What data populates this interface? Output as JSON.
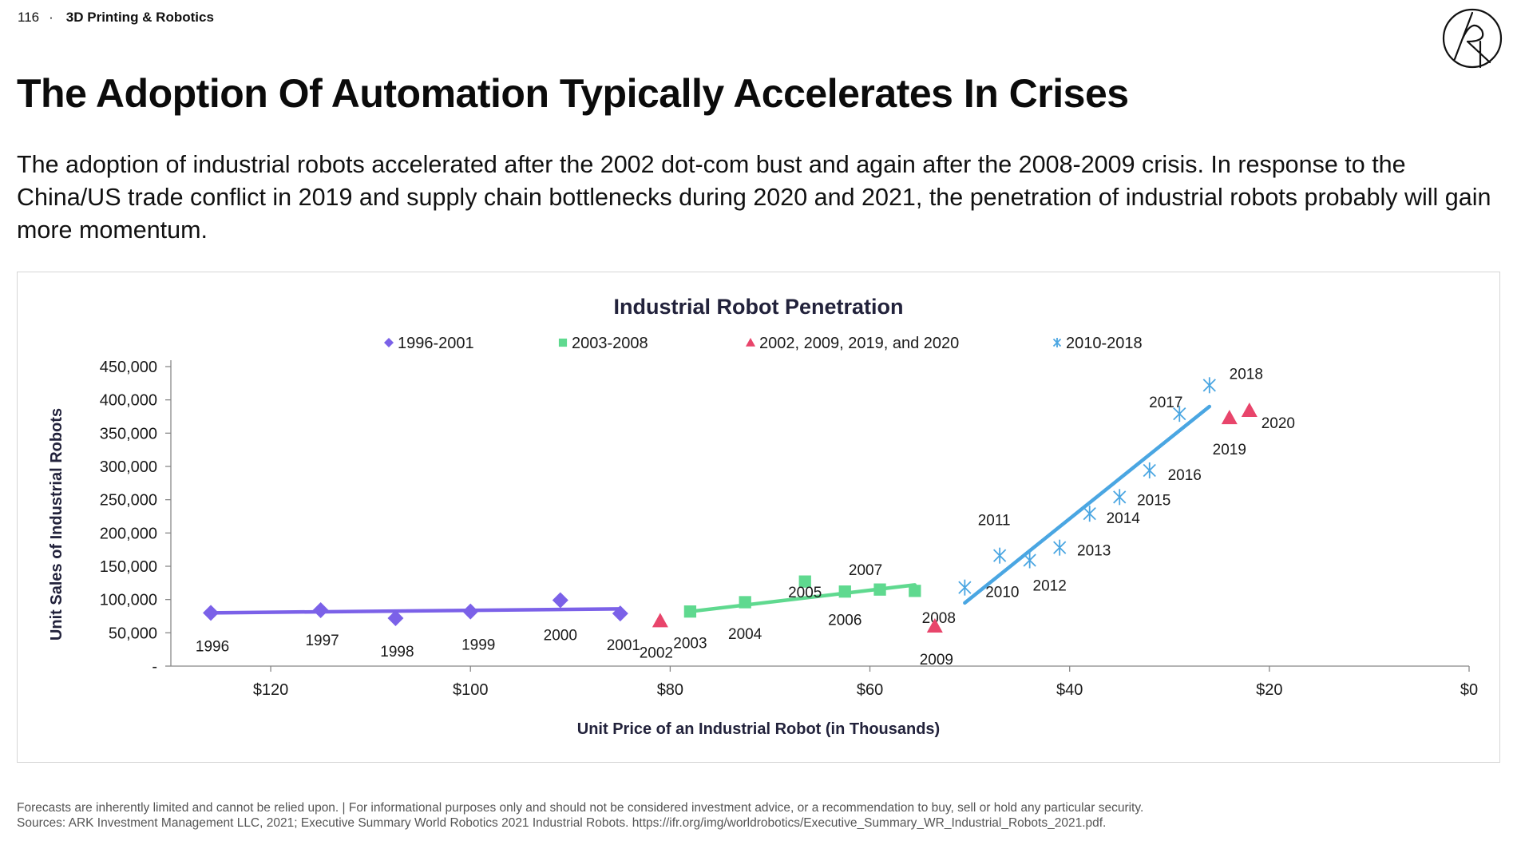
{
  "header": {
    "page_number": "116",
    "separator": "·",
    "section": "3D Printing & Robotics"
  },
  "title": "The Adoption Of Automation Typically Accelerates In Crises",
  "subtitle": "The adoption of industrial robots accelerated after the 2002 dot-com bust and again after the 2008-2009 crisis. In response to the China/US trade conflict in 2019 and supply chain bottlenecks during 2020 and 2021, the penetration of industrial robots probably will gain more momentum.",
  "footer": {
    "disclaimer": "Forecasts are inherently limited and cannot be relied upon. | For informational purposes only and should not be considered investment advice, or a recommendation to buy, sell or hold any particular security.",
    "sources": "Sources: ARK Investment Management LLC, 2021; Executive Summary World Robotics 2021 Industrial Robots. https://ifr.org/img/worldrobotics/Executive_Summary_WR_Industrial_Robots_2021.pdf."
  },
  "colors": {
    "purple": "#7b61e8",
    "green": "#5fd98f",
    "red": "#e8456b",
    "blue": "#4aa6e2",
    "axis": "#888888",
    "text": "#1a1a1a",
    "title_navy": "#22223b"
  },
  "chart_data": {
    "type": "scatter",
    "title": "Industrial Robot Penetration",
    "xlabel": "Unit Price of an Industrial Robot (in Thousands)",
    "ylabel": "Unit Sales of Industrial Robots",
    "x_reversed": true,
    "xlim": [
      0,
      130
    ],
    "ylim": [
      0,
      450000
    ],
    "x_ticks": [
      120,
      100,
      80,
      60,
      40,
      20,
      0
    ],
    "x_tick_labels": [
      "$120",
      "$100",
      "$80",
      "$60",
      "$40",
      "$20",
      "$0"
    ],
    "y_ticks": [
      0,
      50000,
      100000,
      150000,
      200000,
      250000,
      300000,
      350000,
      400000,
      450000
    ],
    "y_tick_labels": [
      "-",
      "50,000",
      "100,000",
      "150,000",
      "200,000",
      "250,000",
      "300,000",
      "350,000",
      "400,000",
      "450,000"
    ],
    "legend_position": "top",
    "series": [
      {
        "name": "1996-2001",
        "marker": "diamond",
        "color": "#7b61e8",
        "points": [
          {
            "label": "1996",
            "x": 126,
            "y": 80000
          },
          {
            "label": "1997",
            "x": 115,
            "y": 84000
          },
          {
            "label": "1998",
            "x": 107.5,
            "y": 72000
          },
          {
            "label": "1999",
            "x": 100,
            "y": 82000
          },
          {
            "label": "2000",
            "x": 91,
            "y": 99000
          },
          {
            "label": "2001",
            "x": 85,
            "y": 79000
          }
        ],
        "trendline": {
          "x": [
            126,
            85
          ],
          "y": [
            80000,
            86000
          ]
        }
      },
      {
        "name": "2003-2008",
        "marker": "square",
        "color": "#5fd98f",
        "points": [
          {
            "label": "2003",
            "x": 78,
            "y": 82000
          },
          {
            "label": "2004",
            "x": 72.5,
            "y": 96000
          },
          {
            "label": "2005",
            "x": 66.5,
            "y": 127000
          },
          {
            "label": "2006",
            "x": 62.5,
            "y": 112000
          },
          {
            "label": "2007",
            "x": 59,
            "y": 115000
          },
          {
            "label": "2008",
            "x": 55.5,
            "y": 113000
          }
        ],
        "trendline": {
          "x": [
            78,
            55.5
          ],
          "y": [
            82000,
            122000
          ]
        }
      },
      {
        "name": "2002, 2009, 2019, and 2020",
        "marker": "triangle",
        "color": "#e8456b",
        "points": [
          {
            "label": "2002",
            "x": 81,
            "y": 68000
          },
          {
            "label": "2009",
            "x": 53.5,
            "y": 60000
          },
          {
            "label": "2019",
            "x": 24,
            "y": 373000
          },
          {
            "label": "2020",
            "x": 22,
            "y": 384000
          }
        ]
      },
      {
        "name": "2010-2018",
        "marker": "asterisk",
        "color": "#4aa6e2",
        "points": [
          {
            "label": "2010",
            "x": 50.5,
            "y": 118000
          },
          {
            "label": "2011",
            "x": 47,
            "y": 166000
          },
          {
            "label": "2012",
            "x": 44,
            "y": 159000
          },
          {
            "label": "2013",
            "x": 41,
            "y": 178000
          },
          {
            "label": "2014",
            "x": 38,
            "y": 229000
          },
          {
            "label": "2015",
            "x": 35,
            "y": 254000
          },
          {
            "label": "2016",
            "x": 32,
            "y": 294000
          },
          {
            "label": "2017",
            "x": 29,
            "y": 379000
          },
          {
            "label": "2018",
            "x": 26,
            "y": 422000
          }
        ],
        "trendline": {
          "x": [
            50.5,
            26
          ],
          "y": [
            95000,
            390000
          ]
        }
      }
    ]
  }
}
